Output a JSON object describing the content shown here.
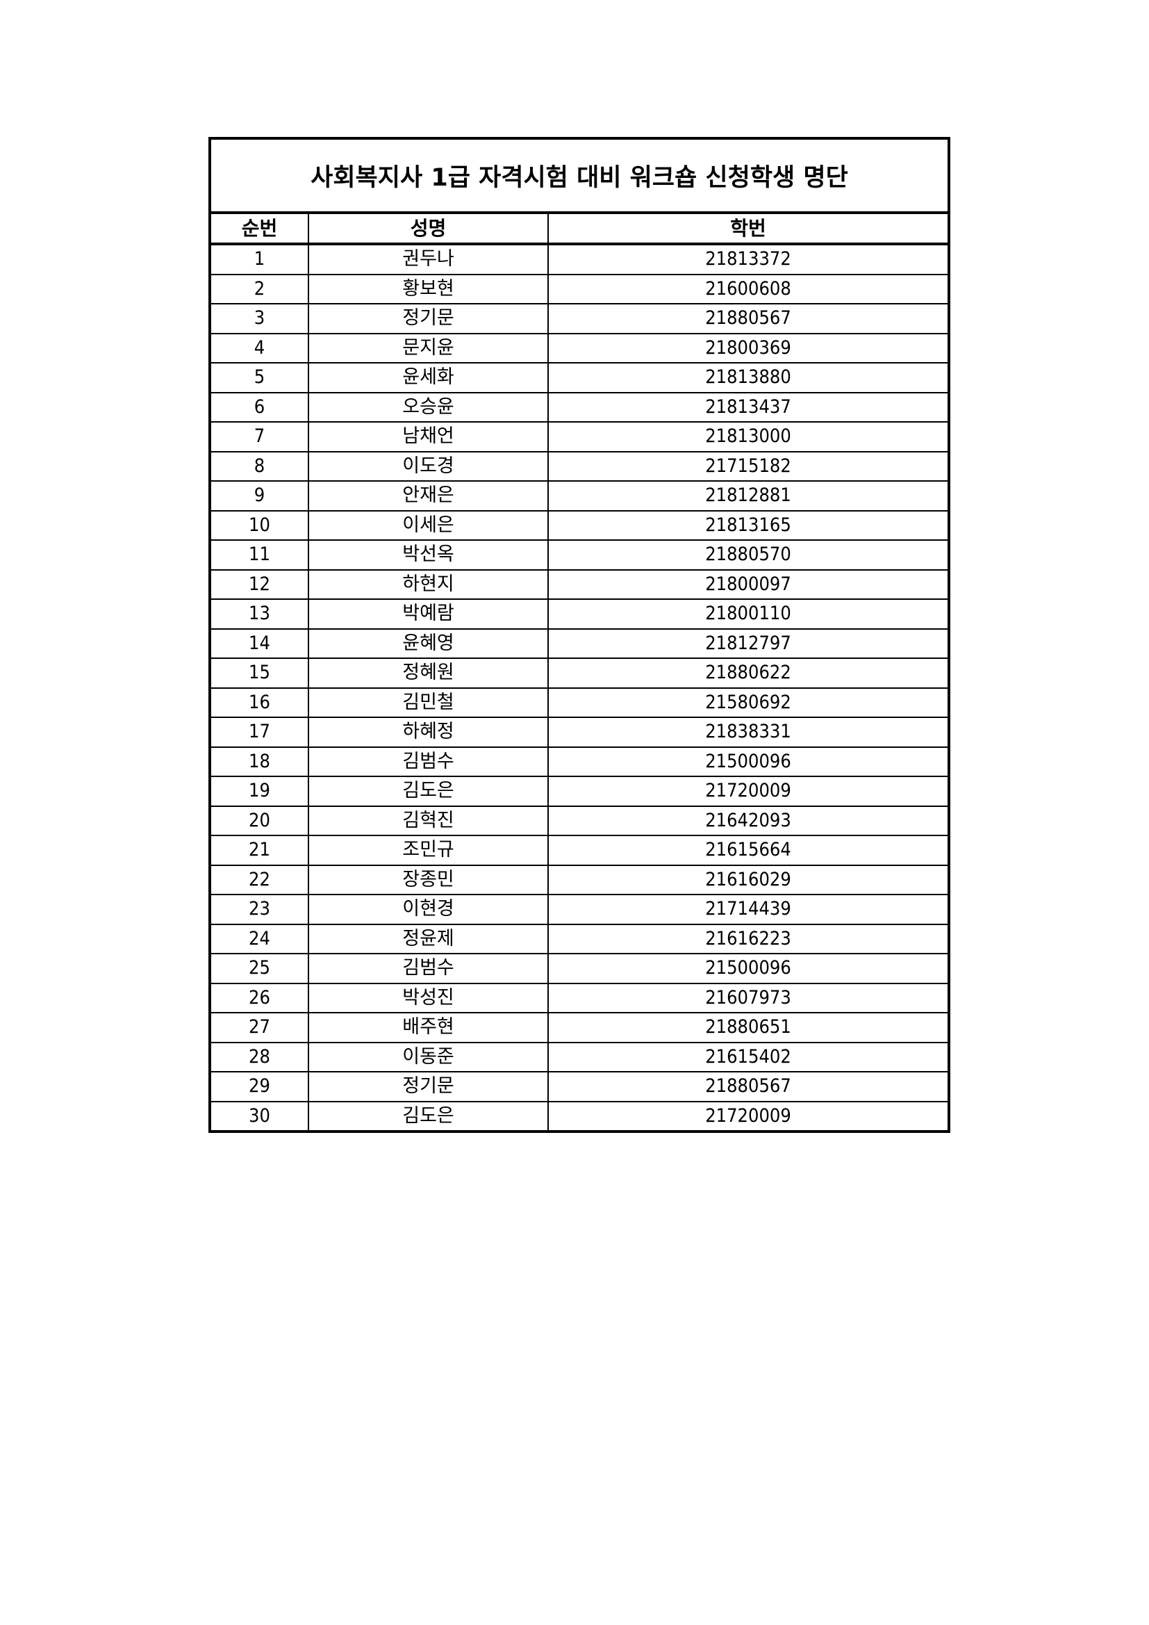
{
  "title": "사회복지사 1급 자격시험 대비 워크숍 신청학생 명단",
  "columns": [
    "순번",
    "성명",
    "학번"
  ],
  "rows": [
    [
      "1",
      "권두나",
      "21813372"
    ],
    [
      "2",
      "황보현",
      "21600608"
    ],
    [
      "3",
      "정기문",
      "21880567"
    ],
    [
      "4",
      "문지윤",
      "21800369"
    ],
    [
      "5",
      "윤세화",
      "21813880"
    ],
    [
      "6",
      "오승윤",
      "21813437"
    ],
    [
      "7",
      "남채언",
      "21813000"
    ],
    [
      "8",
      "이도경",
      "21715182"
    ],
    [
      "9",
      "안재은",
      "21812881"
    ],
    [
      "10",
      "이세은",
      "21813165"
    ],
    [
      "11",
      "박선옥",
      "21880570"
    ],
    [
      "12",
      "하현지",
      "21800097"
    ],
    [
      "13",
      "박예람",
      "21800110"
    ],
    [
      "14",
      "윤혜영",
      "21812797"
    ],
    [
      "15",
      "정혜원",
      "21880622"
    ],
    [
      "16",
      "김민철",
      "21580692"
    ],
    [
      "17",
      "하혜정",
      "21838331"
    ],
    [
      "18",
      "김범수",
      "21500096"
    ],
    [
      "19",
      "김도은",
      "21720009"
    ],
    [
      "20",
      "김혁진",
      "21642093"
    ],
    [
      "21",
      "조민규",
      "21615664"
    ],
    [
      "22",
      "장종민",
      "21616029"
    ],
    [
      "23",
      "이현경",
      "21714439"
    ],
    [
      "24",
      "정윤제",
      "21616223"
    ],
    [
      "25",
      "김범수",
      "21500096"
    ],
    [
      "26",
      "박성진",
      "21607973"
    ],
    [
      "27",
      "배주현",
      "21880651"
    ],
    [
      "28",
      "이동준",
      "21615402"
    ],
    [
      "29",
      "정기문",
      "21880567"
    ],
    [
      "30",
      "김도은",
      "21720009"
    ]
  ]
}
